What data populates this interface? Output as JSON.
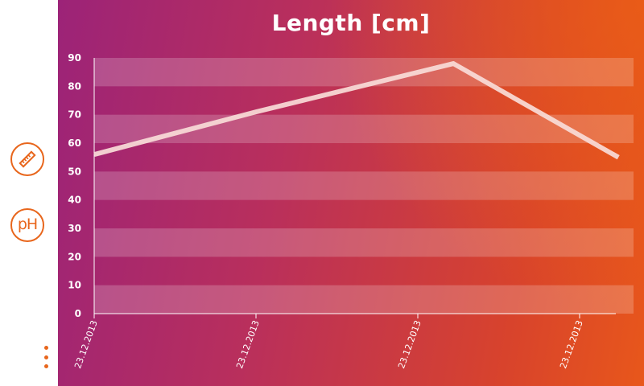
{
  "sidebar": {
    "length_icon": "ruler-icon",
    "ph_label": "pH",
    "menu_icon": "more-vertical-icon",
    "accent_color": "#e8661c"
  },
  "chart_data": {
    "type": "line",
    "title": "Length [cm]",
    "xlabel": "",
    "ylabel": "",
    "categories": [
      "23.12.2013",
      "23.12.2013",
      "23.12.2013",
      "23.12.2013"
    ],
    "series": [
      {
        "points": [
          [
            0,
            56
          ],
          [
            1,
            71
          ],
          [
            2.22,
            88
          ],
          [
            3.24,
            55
          ]
        ]
      }
    ],
    "yticks": [
      0,
      10,
      20,
      30,
      40,
      50,
      60,
      70,
      80,
      90
    ],
    "ylim": [
      0,
      90
    ],
    "grid": "alternating-horizontal-bands",
    "legend": "none",
    "line_color": "#f8dcd8"
  }
}
